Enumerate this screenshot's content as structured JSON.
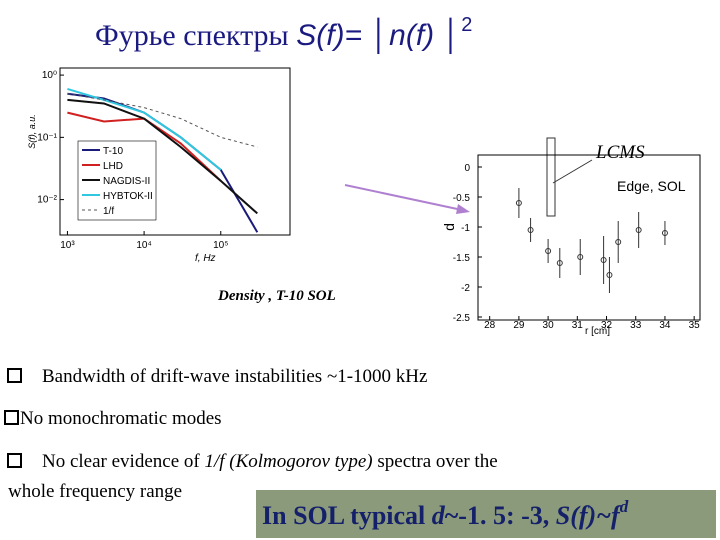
{
  "title": {
    "parts": [
      "Фурье спектры ",
      "S(f)=",
      " │",
      "n(f)",
      " │",
      "2"
    ]
  },
  "chart_data": [
    {
      "type": "line",
      "log_x": true,
      "log_y": true,
      "x_label": "f, Hz",
      "y_label": "S(f), a.u.",
      "x": [
        1000,
        3000,
        10000,
        30000,
        100000,
        300000
      ],
      "xlim": [
        800,
        800000
      ],
      "ylim": [
        0.0027,
        1.3
      ],
      "xticks": [
        {
          "value": 1000,
          "label": "10³"
        },
        {
          "value": 10000,
          "label": "10⁴"
        },
        {
          "value": 100000,
          "label": "10⁵"
        }
      ],
      "yticks": [
        {
          "value": 1,
          "label": "10⁰"
        },
        {
          "value": 0.1,
          "label": "10⁻¹"
        },
        {
          "value": 0.01,
          "label": "10⁻²"
        }
      ],
      "series": [
        {
          "name": "T-10",
          "color": "#1a1a7a",
          "values": [
            0.5,
            0.42,
            0.25,
            0.1,
            0.03,
            0.003
          ]
        },
        {
          "name": "LHD",
          "color": "#d02020",
          "values": [
            0.25,
            0.18,
            0.2,
            0.08,
            0.02,
            null
          ]
        },
        {
          "name": "NAGDIS-II",
          "color": "#111111",
          "values": [
            0.4,
            0.35,
            0.2,
            0.07,
            0.02,
            0.006
          ]
        },
        {
          "name": "НYBTOK-II",
          "color": "#30c8e0",
          "values": [
            0.6,
            0.4,
            0.25,
            0.1,
            0.03,
            null
          ]
        },
        {
          "name": "1/f",
          "color": "#555555",
          "dashed": true,
          "values": [
            0.5,
            0.4,
            0.3,
            0.2,
            0.1,
            0.07
          ]
        }
      ]
    },
    {
      "type": "scatter",
      "x_label": "r [cm]",
      "y_label": "d",
      "x": [
        29,
        29.4,
        30,
        30.4,
        31.1,
        31.9,
        32.1,
        32.4,
        33.1,
        34
      ],
      "values": [
        -0.6,
        -1.05,
        -1.4,
        -1.6,
        -1.5,
        -1.55,
        -1.8,
        -1.25,
        -1.05,
        -1.1
      ],
      "errors": [
        0.25,
        0.2,
        0.2,
        0.25,
        0.3,
        0.4,
        0.3,
        0.35,
        0.3,
        0.2
      ],
      "color": "#333333",
      "xlim": [
        27.6,
        35.2
      ],
      "ylim": [
        -2.55,
        0.2
      ],
      "xticks": [
        28,
        29,
        30,
        31,
        32,
        33,
        34,
        35
      ],
      "yticks": [
        0,
        -0.5,
        -1,
        -1.5,
        -2,
        -2.5
      ]
    }
  ],
  "annotations": {
    "lcms": "LCMS",
    "edge": "Edge, SOL",
    "density": "Density , T-10 SOL"
  },
  "bullets": [
    {
      "parts": [
        "Bandwidth of drift-wave instabilities ~1-1000 kHz"
      ]
    },
    {
      "parts": [
        "No monochromatic  modes"
      ]
    },
    {
      "parts": [
        "No clear evidence of ",
        "1/f (Kolmogorov type)",
        " spectra over the"
      ],
      "cont": "whole frequency range"
    }
  ],
  "box": {
    "parts": [
      "In SOL typical ",
      "d",
      "~-1. 5: -3, ",
      "S(f)",
      "~f",
      "d"
    ]
  }
}
